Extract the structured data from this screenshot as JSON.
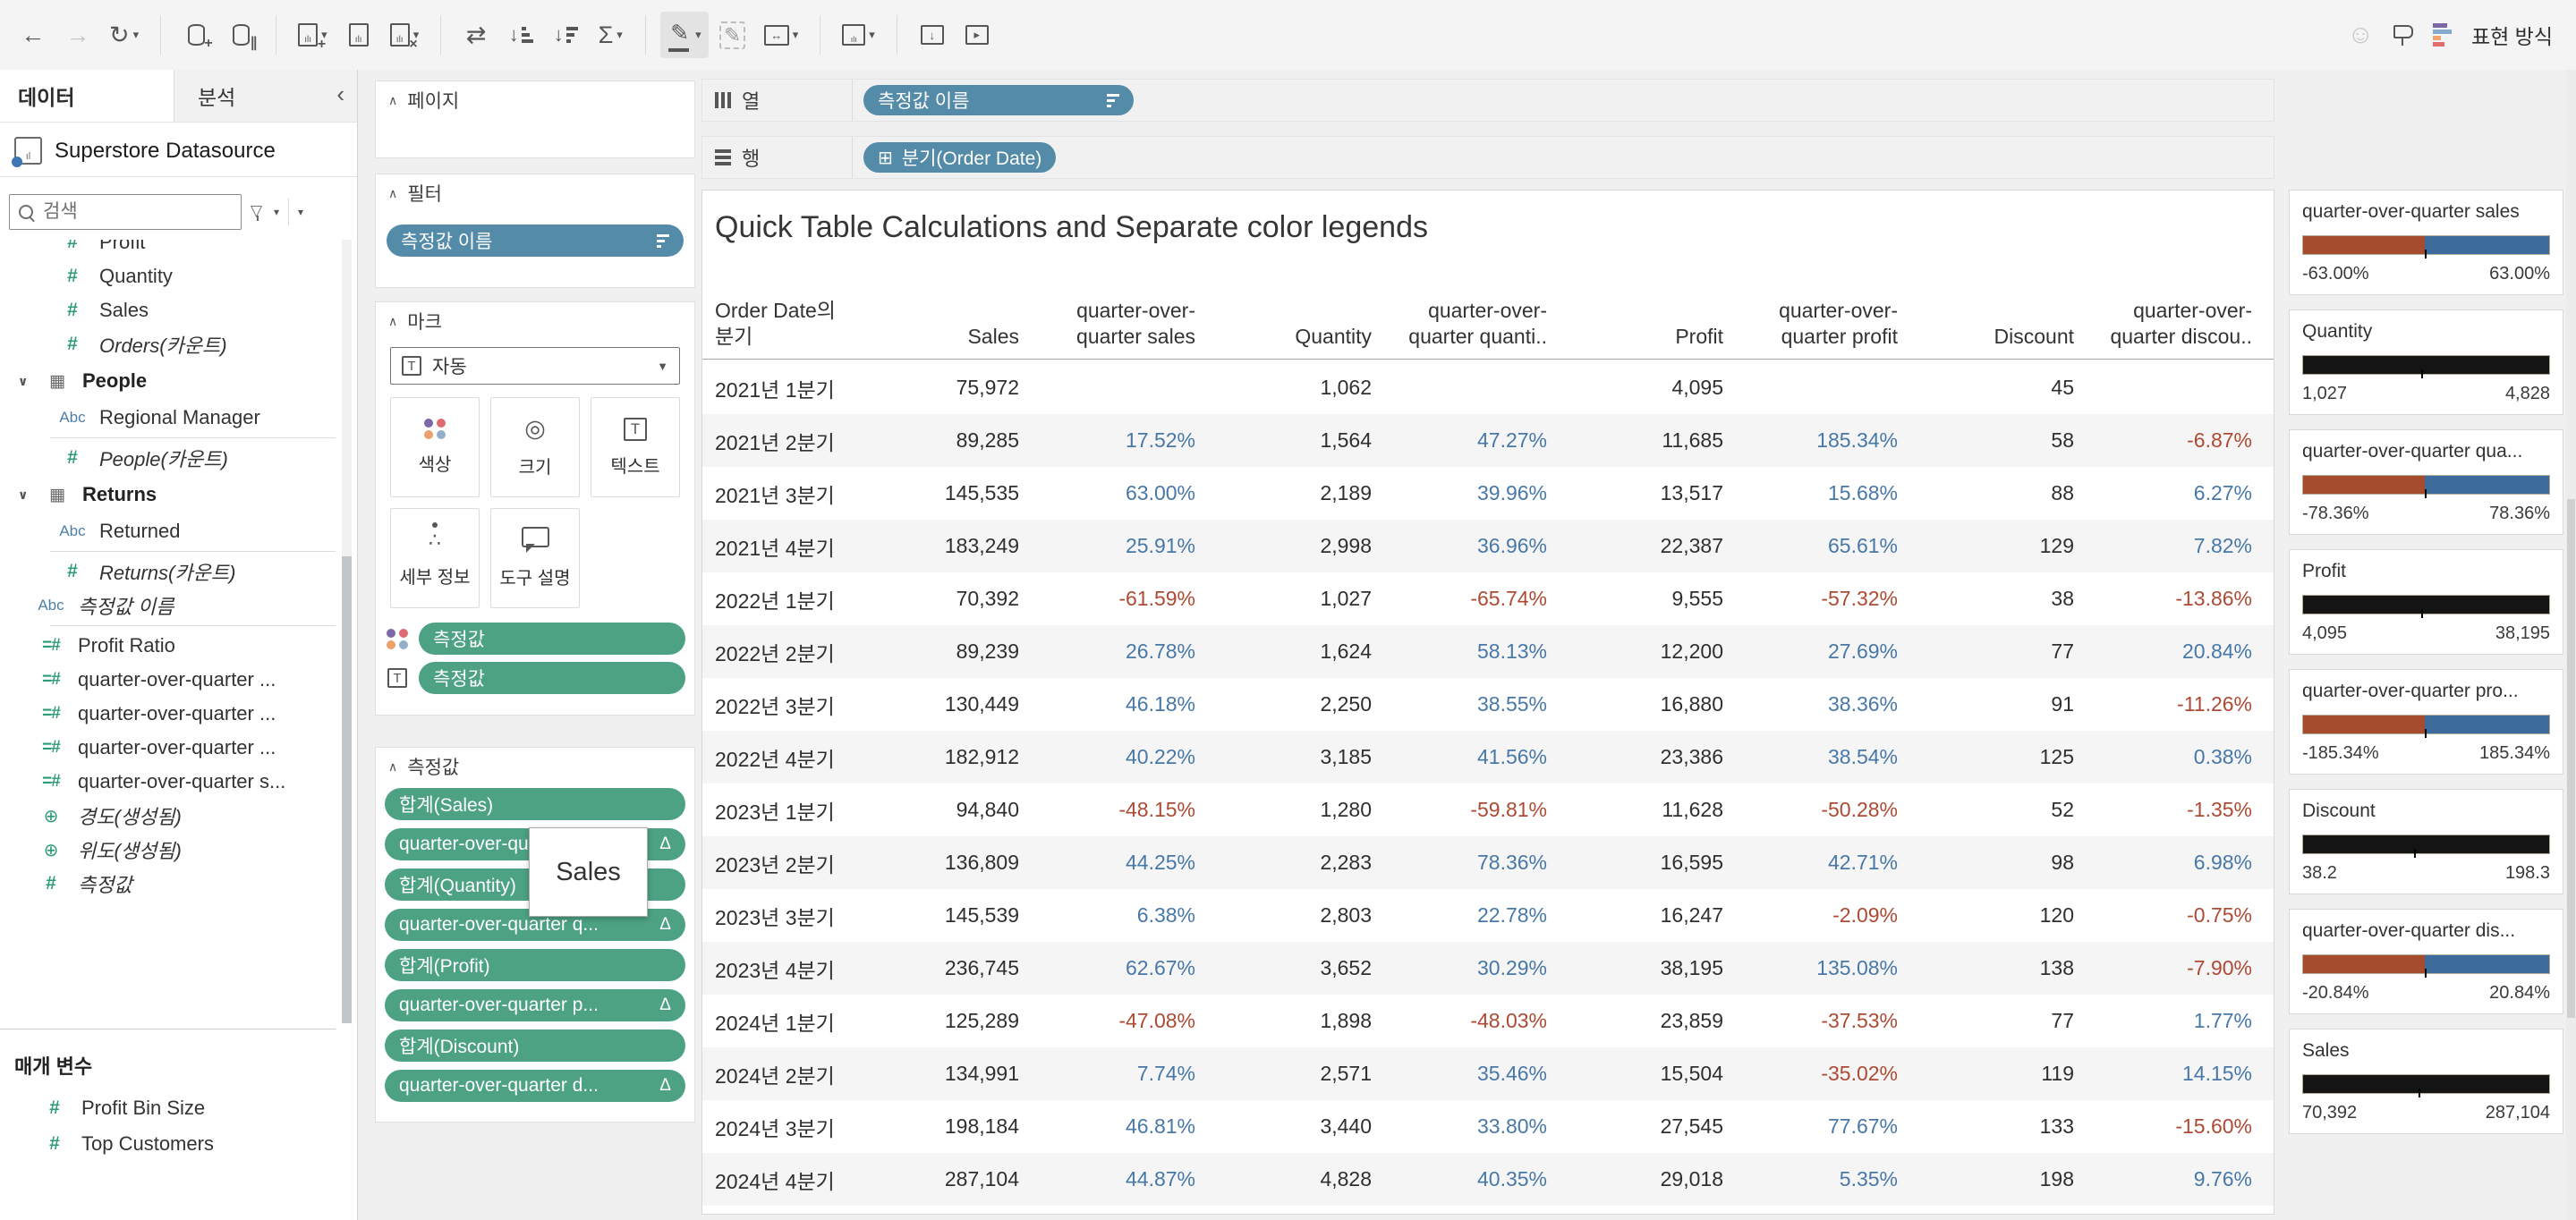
{
  "toolbar": {
    "show_me_label": "표현 방식",
    "groups": [
      [
        {
          "name": "back",
          "glyph": "←"
        },
        {
          "name": "forward",
          "glyph": "→",
          "disabled": true
        },
        {
          "name": "redo",
          "glyph": "↻",
          "caret": true
        }
      ],
      [
        {
          "name": "add-data",
          "glyph": "@cyl-plus"
        },
        {
          "name": "pause-auto-updates",
          "glyph": "@cyl-pause"
        }
      ],
      [
        {
          "name": "new-worksheet",
          "glyph": "@sheet-plus",
          "caret": true
        },
        {
          "name": "duplicate-sheet",
          "glyph": "@sheet-dup"
        },
        {
          "name": "clear-sheet",
          "glyph": "@sheet-clear",
          "caret": true
        }
      ],
      [
        {
          "name": "swap-rows-columns",
          "glyph": "⇄"
        },
        {
          "name": "sort-ascending",
          "glyph": "@sort-asc"
        },
        {
          "name": "sort-descending",
          "glyph": "@sort-desc"
        },
        {
          "name": "totals",
          "glyph": "Σ",
          "caret": true
        }
      ],
      [
        {
          "name": "highlight",
          "glyph": "@highlight",
          "caret": true,
          "active": true
        },
        {
          "name": "format",
          "glyph": "@format"
        },
        {
          "name": "fit",
          "glyph": "@fit",
          "caret": true
        }
      ],
      [
        {
          "name": "show-cards",
          "glyph": "@cards",
          "caret": true
        }
      ],
      [
        {
          "name": "download",
          "glyph": "@share"
        },
        {
          "name": "presentation-mode",
          "glyph": "@present"
        }
      ]
    ]
  },
  "sidebar": {
    "tab_data": "데이터",
    "tab_analytics": "분석",
    "collapse_glyph": "‹",
    "datasource": "Superstore Datasource",
    "search_placeholder": "검색",
    "sections": [
      {
        "type": "fields",
        "indent": "child",
        "items": [
          {
            "icon": "hash",
            "label": "Profit",
            "cut": true
          },
          {
            "icon": "hash",
            "label": "Quantity"
          },
          {
            "icon": "hash",
            "label": "Sales"
          },
          {
            "icon": "hash",
            "label": "Orders(카운트)",
            "italic": true
          }
        ]
      },
      {
        "type": "group",
        "header": "People",
        "items": [
          {
            "icon": "abc",
            "label": "Regional Manager"
          },
          {
            "divider": true
          },
          {
            "icon": "hash",
            "label": "People(카운트)",
            "italic": true
          }
        ]
      },
      {
        "type": "group",
        "header": "Returns",
        "items": [
          {
            "icon": "abc",
            "label": "Returned"
          },
          {
            "divider": true
          },
          {
            "icon": "hash",
            "label": "Returns(카운트)",
            "italic": true
          }
        ]
      },
      {
        "type": "fields",
        "indent": "loose",
        "items": [
          {
            "icon": "abc",
            "label": "측정값 이름",
            "italic": true
          },
          {
            "divider": true
          },
          {
            "icon": "calc",
            "label": "Profit Ratio"
          },
          {
            "icon": "calc",
            "label": "quarter-over-quarter ..."
          },
          {
            "icon": "calc",
            "label": "quarter-over-quarter ..."
          },
          {
            "icon": "calc",
            "label": "quarter-over-quarter ..."
          },
          {
            "icon": "calc",
            "label": "quarter-over-quarter s..."
          },
          {
            "icon": "globe",
            "label": "경도(생성됨)",
            "italic": true
          },
          {
            "icon": "globe",
            "label": "위도(생성됨)",
            "italic": true
          },
          {
            "icon": "hash",
            "label": "측정값",
            "italic": true
          }
        ]
      }
    ],
    "parameters": {
      "title": "매개 변수",
      "items": [
        {
          "icon": "hash",
          "label": "Profit Bin Size"
        },
        {
          "icon": "hash",
          "label": "Top Customers"
        }
      ]
    }
  },
  "panel": {
    "pages_title": "페이지",
    "filters_title": "필터",
    "filter_pill": "측정값 이름",
    "marks_title": "마크",
    "marks_type": "자동",
    "marks_buttons": [
      {
        "name": "color",
        "label": "색상"
      },
      {
        "name": "size",
        "label": "크기"
      },
      {
        "name": "text",
        "label": "텍스트"
      },
      {
        "name": "detail",
        "label": "세부 정보"
      },
      {
        "name": "tooltip",
        "label": "도구 설명"
      }
    ],
    "marks_pills": [
      {
        "icon": "color-dots",
        "label": "측정값"
      },
      {
        "icon": "text-box",
        "label": "측정값"
      }
    ],
    "measures_title": "측정값",
    "measure_pills": [
      {
        "label": "합계(Sales)"
      },
      {
        "label": "quarter-over-quarter s...",
        "delta": true
      },
      {
        "label": "합계(Quantity)"
      },
      {
        "label": "quarter-over-quarter q...",
        "delta": true
      },
      {
        "label": "합계(Profit)"
      },
      {
        "label": "quarter-over-quarter p...",
        "delta": true
      },
      {
        "label": "합계(Discount)"
      },
      {
        "label": "quarter-over-quarter d...",
        "delta": true
      }
    ],
    "drag_label": "Sales"
  },
  "shelves": {
    "columns_label": "열",
    "columns_pill": "측정값 이름",
    "rows_label": "행",
    "rows_pill": "분기(Order Date)",
    "rows_pill_prefix": "⊞"
  },
  "sheet": {
    "title": "Quick Table Calculations and Separate color legends",
    "table": {
      "columns": [
        {
          "label": "Order Date의\n분기",
          "align": "left"
        },
        {
          "label": "Sales"
        },
        {
          "label": "quarter-over-\nquarter sales"
        },
        {
          "label": "Quantity"
        },
        {
          "label": "quarter-over-\nquarter quanti.."
        },
        {
          "label": "Profit"
        },
        {
          "label": "quarter-over-\nquarter profit"
        },
        {
          "label": "Discount"
        },
        {
          "label": "quarter-over-\nquarter discou.."
        }
      ],
      "rows": [
        [
          "2021년 1분기",
          "75,972",
          "",
          "1,062",
          "",
          "4,095",
          "",
          "45",
          ""
        ],
        [
          "2021년 2분기",
          "89,285",
          "17.52%",
          "1,564",
          "47.27%",
          "11,685",
          "185.34%",
          "58",
          "-6.87%"
        ],
        [
          "2021년 3분기",
          "145,535",
          "63.00%",
          "2,189",
          "39.96%",
          "13,517",
          "15.68%",
          "88",
          "6.27%"
        ],
        [
          "2021년 4분기",
          "183,249",
          "25.91%",
          "2,998",
          "36.96%",
          "22,387",
          "65.61%",
          "129",
          "7.82%"
        ],
        [
          "2022년 1분기",
          "70,392",
          "-61.59%",
          "1,027",
          "-65.74%",
          "9,555",
          "-57.32%",
          "38",
          "-13.86%"
        ],
        [
          "2022년 2분기",
          "89,239",
          "26.78%",
          "1,624",
          "58.13%",
          "12,200",
          "27.69%",
          "77",
          "20.84%"
        ],
        [
          "2022년 3분기",
          "130,449",
          "46.18%",
          "2,250",
          "38.55%",
          "16,880",
          "38.36%",
          "91",
          "-11.26%"
        ],
        [
          "2022년 4분기",
          "182,912",
          "40.22%",
          "3,185",
          "41.56%",
          "23,386",
          "38.54%",
          "125",
          "0.38%"
        ],
        [
          "2023년 1분기",
          "94,840",
          "-48.15%",
          "1,280",
          "-59.81%",
          "11,628",
          "-50.28%",
          "52",
          "-1.35%"
        ],
        [
          "2023년 2분기",
          "136,809",
          "44.25%",
          "2,283",
          "78.36%",
          "16,595",
          "42.71%",
          "98",
          "6.98%"
        ],
        [
          "2023년 3분기",
          "145,539",
          "6.38%",
          "2,803",
          "22.78%",
          "16,247",
          "-2.09%",
          "120",
          "-0.75%"
        ],
        [
          "2023년 4분기",
          "236,745",
          "62.67%",
          "3,652",
          "30.29%",
          "38,195",
          "135.08%",
          "138",
          "-7.90%"
        ],
        [
          "2024년 1분기",
          "125,289",
          "-47.08%",
          "1,898",
          "-48.03%",
          "23,859",
          "-37.53%",
          "77",
          "1.77%"
        ],
        [
          "2024년 2분기",
          "134,991",
          "7.74%",
          "2,571",
          "35.46%",
          "15,504",
          "-35.02%",
          "119",
          "14.15%"
        ],
        [
          "2024년 3분기",
          "198,184",
          "46.81%",
          "3,440",
          "33.80%",
          "27,545",
          "77.67%",
          "133",
          "-15.60%"
        ],
        [
          "2024년 4분기",
          "287,104",
          "44.87%",
          "4,828",
          "40.35%",
          "29,018",
          "5.35%",
          "198",
          "9.76%"
        ]
      ]
    }
  },
  "legends": [
    {
      "title": "quarter-over-quarter sales",
      "type": "diverging",
      "min": "-63.00%",
      "max": "63.00%",
      "tick": 49.5
    },
    {
      "title": "Quantity",
      "type": "solid",
      "min": "1,027",
      "max": "4,828",
      "tick": 48
    },
    {
      "title": "quarter-over-quarter qua...",
      "type": "diverging",
      "min": "-78.36%",
      "max": "78.36%",
      "tick": 49.5
    },
    {
      "title": "Profit",
      "type": "solid",
      "min": "4,095",
      "max": "38,195",
      "tick": 48
    },
    {
      "title": "quarter-over-quarter pro...",
      "type": "diverging",
      "min": "-185.34%",
      "max": "185.34%",
      "tick": 49.5
    },
    {
      "title": "Discount",
      "type": "solid",
      "min": "38.2",
      "max": "198.3",
      "tick": 45
    },
    {
      "title": "quarter-over-quarter dis...",
      "type": "diverging",
      "min": "-20.84%",
      "max": "20.84%",
      "tick": 49.5
    },
    {
      "title": "Sales",
      "type": "solid",
      "min": "70,392",
      "max": "287,104",
      "tick": 47
    }
  ],
  "colors": {
    "pill_blue": "#548BA8",
    "pill_green": "#4CA283",
    "positive_text": "#4878a8",
    "negative_text": "#ae4a33",
    "diverging_left": "#a54c2e",
    "diverging_right": "#3d6b9b",
    "solid_bar": "#141414"
  }
}
